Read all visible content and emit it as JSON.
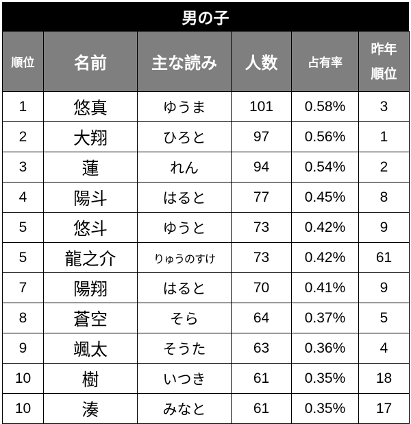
{
  "title": "男の子",
  "headers": {
    "rank": "順位",
    "name": "名前",
    "reading": "主な読み",
    "count": "人数",
    "share": "占有率",
    "prev_rank_line1": "昨年",
    "prev_rank_line2": "順位"
  },
  "rows": [
    {
      "rank": "1",
      "name": "悠真",
      "reading": "ゆうま",
      "count": "101",
      "share": "0.58%",
      "prev": "3"
    },
    {
      "rank": "2",
      "name": "大翔",
      "reading": "ひろと",
      "count": "97",
      "share": "0.56%",
      "prev": "1"
    },
    {
      "rank": "3",
      "name": "蓮",
      "reading": "れん",
      "count": "94",
      "share": "0.54%",
      "prev": "2"
    },
    {
      "rank": "4",
      "name": "陽斗",
      "reading": "はると",
      "count": "77",
      "share": "0.45%",
      "prev": "8"
    },
    {
      "rank": "5",
      "name": "悠斗",
      "reading": "ゆうと",
      "count": "73",
      "share": "0.42%",
      "prev": "9"
    },
    {
      "rank": "5",
      "name": "龍之介",
      "reading": "りゅうのすけ",
      "count": "73",
      "share": "0.42%",
      "prev": "61"
    },
    {
      "rank": "7",
      "name": "陽翔",
      "reading": "はると",
      "count": "70",
      "share": "0.41%",
      "prev": "9"
    },
    {
      "rank": "8",
      "name": "蒼空",
      "reading": "そら",
      "count": "64",
      "share": "0.37%",
      "prev": "5"
    },
    {
      "rank": "9",
      "name": "颯太",
      "reading": "そうた",
      "count": "63",
      "share": "0.36%",
      "prev": "4"
    },
    {
      "rank": "10",
      "name": "樹",
      "reading": "いつき",
      "count": "61",
      "share": "0.35%",
      "prev": "18"
    },
    {
      "rank": "10",
      "name": "湊",
      "reading": "みなと",
      "count": "61",
      "share": "0.35%",
      "prev": "17"
    }
  ]
}
